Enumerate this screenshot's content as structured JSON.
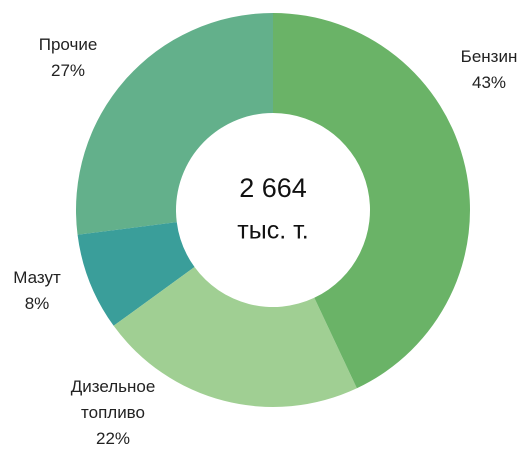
{
  "chart_data": {
    "type": "donut",
    "categories": [
      "Бензин",
      "Дизельное топливо",
      "Мазут",
      "Прочие"
    ],
    "values": [
      43,
      22,
      8,
      27
    ],
    "value_labels": [
      "43%",
      "22%",
      "8%",
      "27%"
    ],
    "colors": [
      "#6ab367",
      "#a0cf93",
      "#3a9e9a",
      "#63b08b"
    ],
    "center_value": "2 664",
    "center_unit": "тыс. т."
  }
}
